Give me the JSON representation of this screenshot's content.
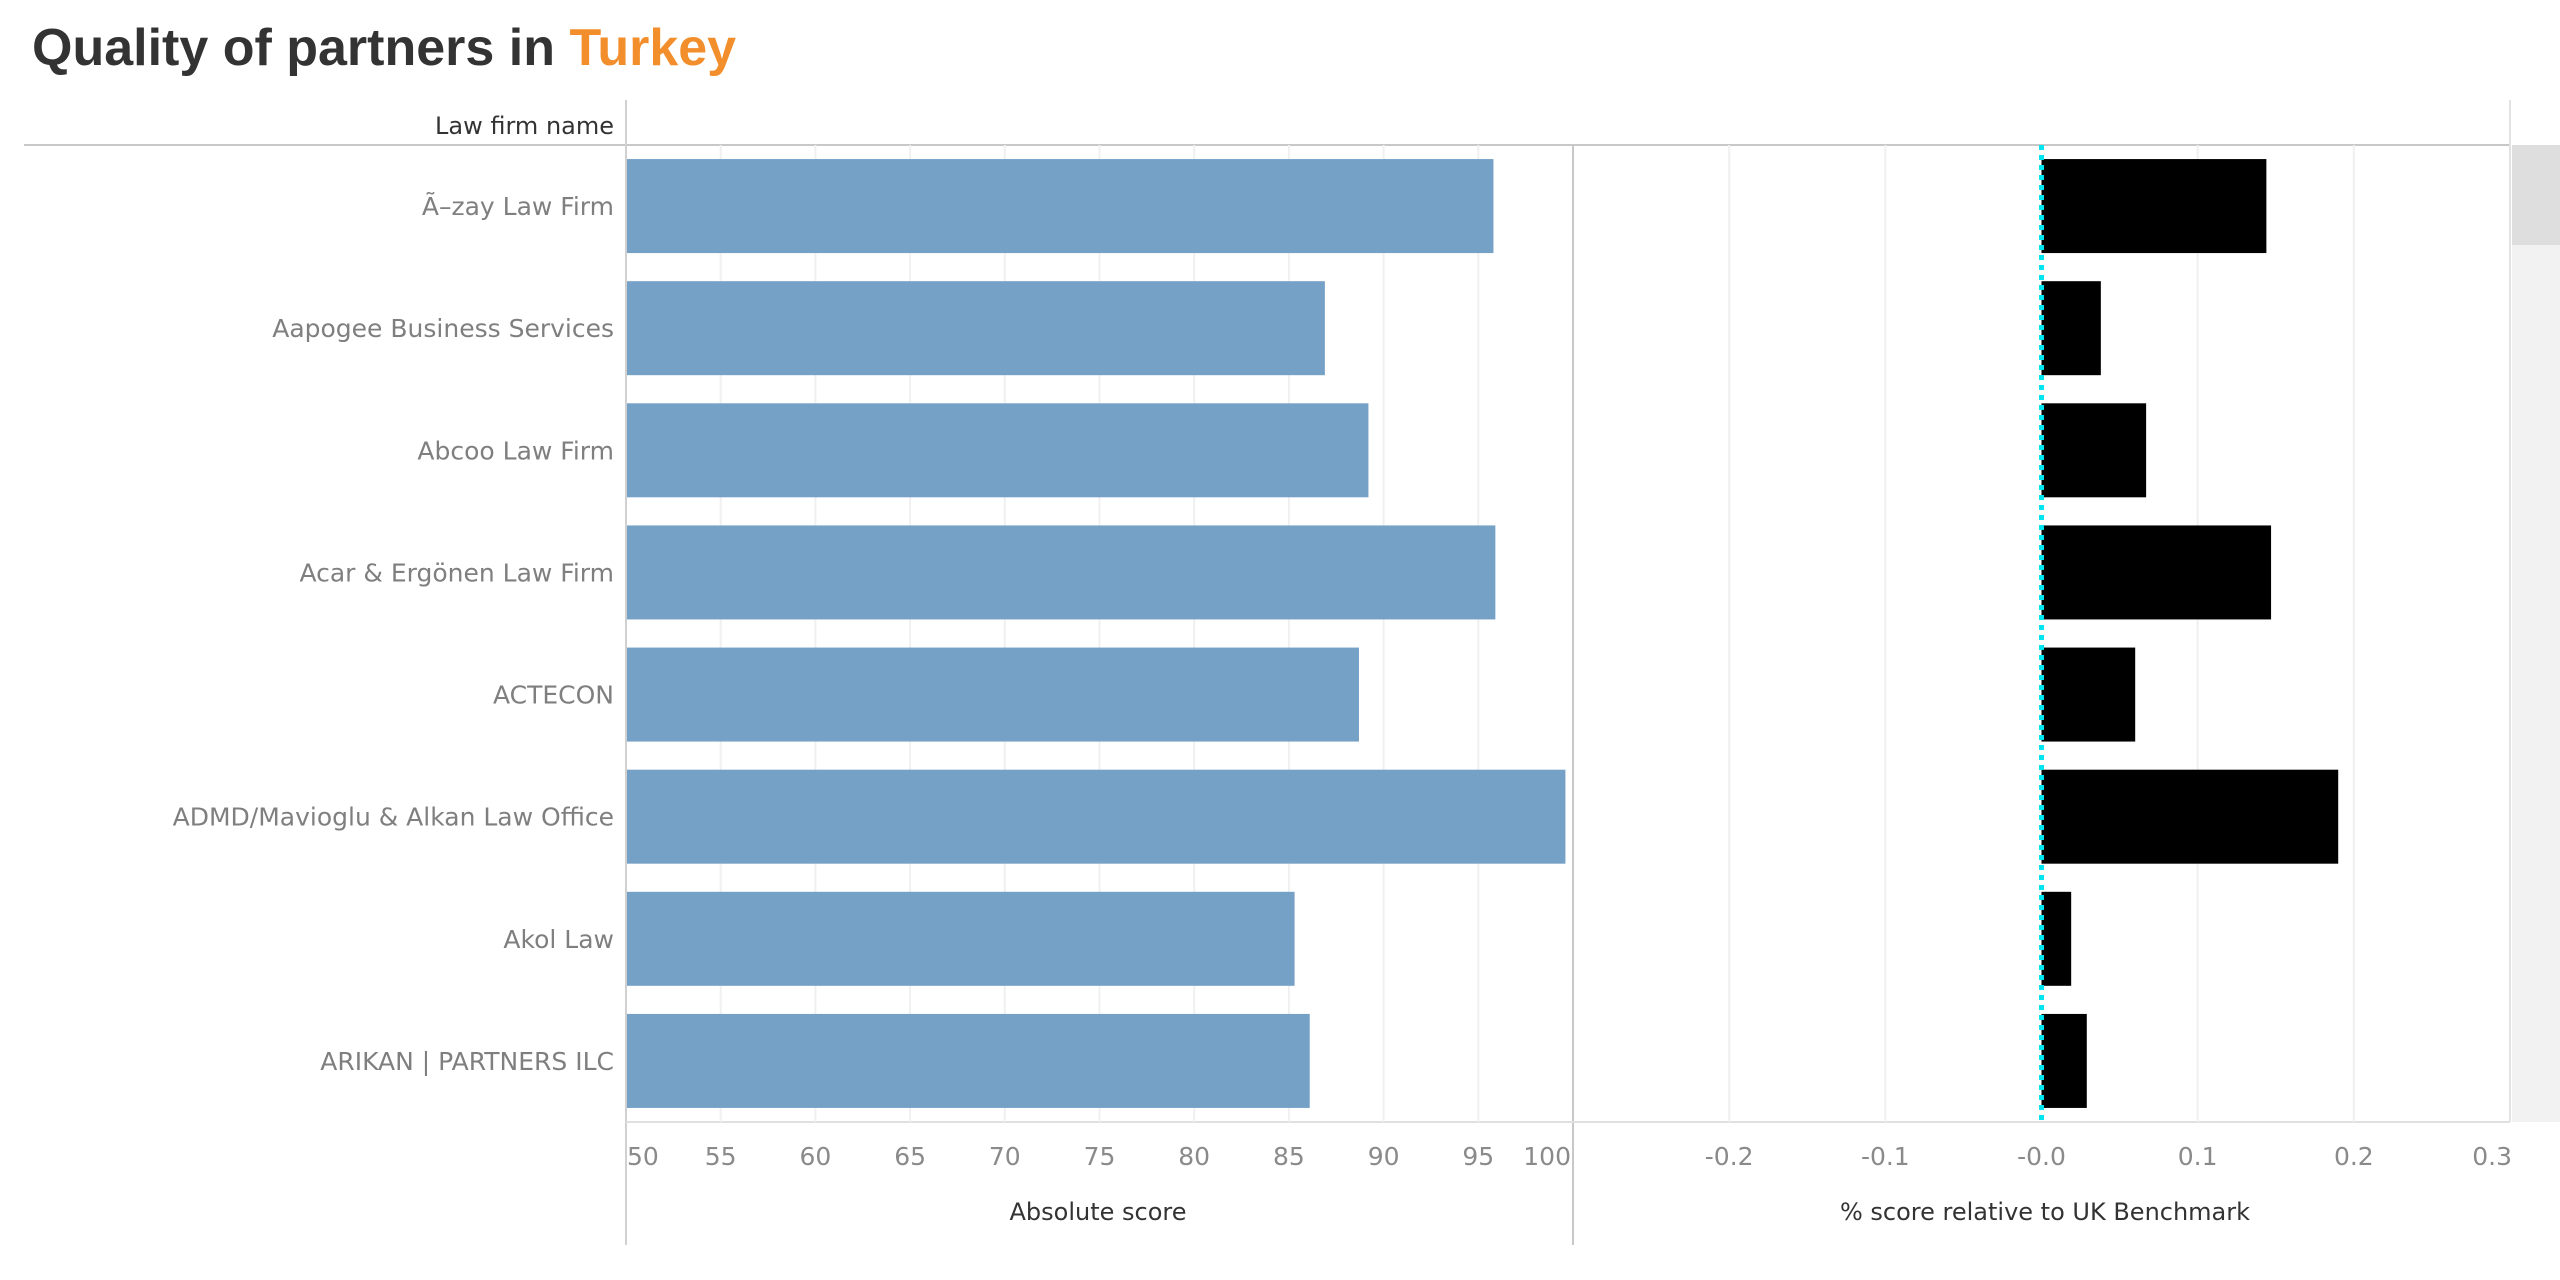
{
  "header": {
    "title_prefix": "Quality of partners in",
    "title_country": "Turkey",
    "row_header": "Law firm name"
  },
  "colors": {
    "absolute_bar": "#76a1c7",
    "relative_bar": "#000000",
    "benchmark_line": "#00e5f0",
    "title_accent": "#f28e2b"
  },
  "chart_data": [
    {
      "type": "bar",
      "orientation": "horizontal",
      "xlabel": "Absolute score",
      "xlim": [
        50,
        100
      ],
      "ticks": [
        50,
        55,
        60,
        65,
        70,
        75,
        80,
        85,
        90,
        95,
        100
      ],
      "tick_labels": [
        "50",
        "55",
        "60",
        "65",
        "70",
        "75",
        "80",
        "85",
        "90",
        "95",
        "100"
      ],
      "categories": [
        "Ã–zay Law Firm",
        "Aapogee Business Services",
        "Abcoo Law Firm",
        "Acar & Ergönen Law Firm",
        "ACTECON",
        "ADMD/Mavioglu & Alkan Law Office",
        "Akol Law",
        "ARIKAN | PARTNERS ILC"
      ],
      "values": [
        95.8,
        86.9,
        89.2,
        95.9,
        88.7,
        99.6,
        85.3,
        86.1
      ],
      "grid": true
    },
    {
      "type": "bar",
      "orientation": "horizontal",
      "xlabel": "% score relative to UK Benchmark",
      "xlim": [
        -0.3,
        0.3
      ],
      "ticks": [
        -0.2,
        -0.1,
        0.0,
        0.1,
        0.2,
        0.3
      ],
      "tick_labels": [
        "-0.2",
        "-0.1",
        "-0.0",
        "0.1",
        "0.2",
        "0.3"
      ],
      "categories": [
        "Ã–zay Law Firm",
        "Aapogee Business Services",
        "Abcoo Law Firm",
        "Acar & Ergönen Law Firm",
        "ACTECON",
        "ADMD/Mavioglu & Alkan Law Office",
        "Akol Law",
        "ARIKAN | PARTNERS ILC"
      ],
      "values": [
        0.144,
        0.038,
        0.067,
        0.147,
        0.06,
        0.19,
        0.019,
        0.029
      ],
      "reference_line": 0.0,
      "grid": true
    }
  ]
}
